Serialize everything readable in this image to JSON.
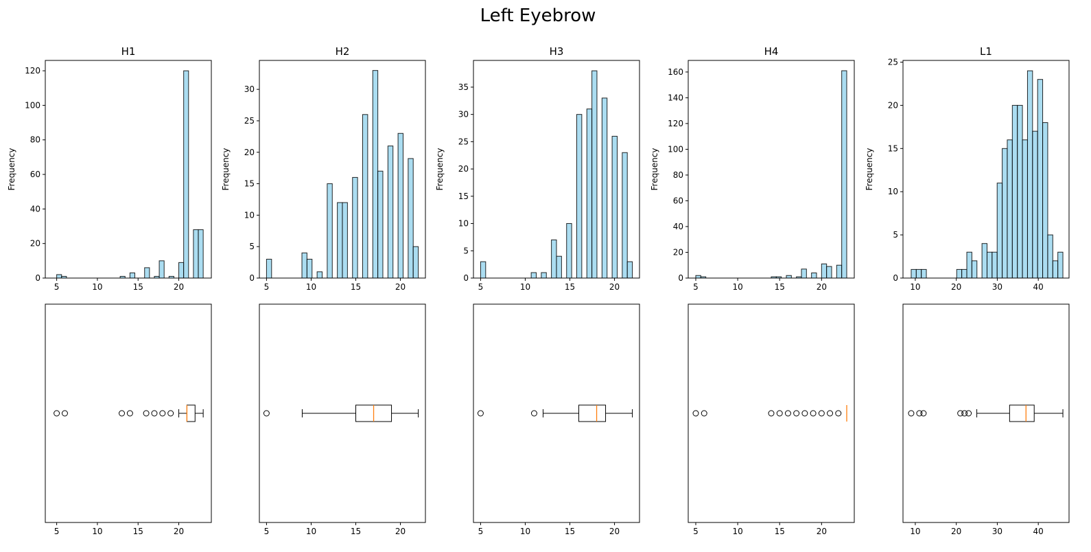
{
  "figure": {
    "title": "Left Eyebrow"
  },
  "colors": {
    "bar_fill": "#87ceeb",
    "bar_edge": "#000000",
    "median": "#ff7f0e",
    "box": "#000000"
  },
  "chart_data": [
    {
      "type": "bar",
      "panel": "histogram",
      "title": "H1",
      "xlabel": "",
      "ylabel": "Frequency",
      "xlim": [
        3.6,
        24.0
      ],
      "ylim": [
        0,
        126
      ],
      "xticks": [
        5,
        10,
        15,
        20
      ],
      "yticks": [
        0,
        20,
        40,
        60,
        80,
        100,
        120
      ],
      "bin_edges": [
        5.0,
        5.6,
        6.2,
        6.8,
        7.4,
        8.0,
        8.6,
        9.2,
        9.8,
        10.4,
        11.0,
        11.6,
        12.2,
        12.8,
        13.4,
        14.0,
        14.6,
        15.2,
        15.8,
        16.4,
        17.0,
        17.6,
        18.2,
        18.8,
        19.4,
        20.0,
        20.6,
        21.2,
        21.8,
        22.4,
        23.0
      ],
      "values": [
        2,
        1,
        0,
        0,
        0,
        0,
        0,
        0,
        0,
        0,
        0,
        0,
        0,
        1,
        0,
        3,
        0,
        0,
        6,
        0,
        1,
        10,
        0,
        1,
        0,
        9,
        120,
        0,
        28,
        28
      ],
      "grid": false
    },
    {
      "type": "bar",
      "panel": "histogram",
      "title": "H2",
      "xlabel": "",
      "ylabel": "Frequency",
      "xlim": [
        4.2,
        22.8
      ],
      "ylim": [
        0,
        34.6
      ],
      "xticks": [
        5,
        10,
        15,
        20
      ],
      "yticks": [
        0,
        5,
        10,
        15,
        20,
        25,
        30
      ],
      "bin_edges": [
        5.0,
        5.567,
        6.133,
        6.7,
        7.267,
        7.833,
        8.4,
        8.967,
        9.533,
        10.1,
        10.667,
        11.233,
        11.8,
        12.367,
        12.933,
        13.5,
        14.067,
        14.633,
        15.2,
        15.767,
        16.333,
        16.9,
        17.467,
        18.033,
        18.6,
        19.167,
        19.733,
        20.3,
        20.867,
        21.433,
        22.0
      ],
      "values": [
        3,
        0,
        0,
        0,
        0,
        0,
        0,
        4,
        3,
        0,
        1,
        0,
        15,
        0,
        12,
        12,
        0,
        16,
        0,
        26,
        0,
        33,
        17,
        0,
        21,
        0,
        23,
        0,
        19,
        5
      ],
      "grid": false
    },
    {
      "type": "bar",
      "panel": "histogram",
      "title": "H3",
      "xlabel": "",
      "ylabel": "Frequency",
      "xlim": [
        4.2,
        22.8
      ],
      "ylim": [
        0,
        39.9
      ],
      "xticks": [
        5,
        10,
        15,
        20
      ],
      "yticks": [
        0,
        5,
        10,
        15,
        20,
        25,
        30,
        35
      ],
      "bin_edges": [
        5.0,
        5.567,
        6.133,
        6.7,
        7.267,
        7.833,
        8.4,
        8.967,
        9.533,
        10.1,
        10.667,
        11.233,
        11.8,
        12.367,
        12.933,
        13.5,
        14.067,
        14.633,
        15.2,
        15.767,
        16.333,
        16.9,
        17.467,
        18.033,
        18.6,
        19.167,
        19.733,
        20.3,
        20.867,
        21.433,
        22.0
      ],
      "values": [
        3,
        0,
        0,
        0,
        0,
        0,
        0,
        0,
        0,
        0,
        1,
        0,
        1,
        0,
        7,
        4,
        0,
        10,
        0,
        30,
        0,
        31,
        38,
        0,
        33,
        0,
        26,
        0,
        23,
        3
      ],
      "grid": false
    },
    {
      "type": "bar",
      "panel": "histogram",
      "title": "H4",
      "xlabel": "",
      "ylabel": "Frequency",
      "xlim": [
        4.1,
        23.9
      ],
      "ylim": [
        0,
        169
      ],
      "xticks": [
        5,
        10,
        15,
        20
      ],
      "yticks": [
        0,
        20,
        40,
        60,
        80,
        100,
        120,
        140,
        160
      ],
      "bin_edges": [
        5.0,
        5.6,
        6.2,
        6.8,
        7.4,
        8.0,
        8.6,
        9.2,
        9.8,
        10.4,
        11.0,
        11.6,
        12.2,
        12.8,
        13.4,
        14.0,
        14.6,
        15.2,
        15.8,
        16.4,
        17.0,
        17.6,
        18.2,
        18.8,
        19.4,
        20.0,
        20.6,
        21.2,
        21.8,
        22.4,
        23.0
      ],
      "values": [
        2,
        1,
        0,
        0,
        0,
        0,
        0,
        0,
        0,
        0,
        0,
        0,
        0,
        0,
        0,
        1,
        1,
        0,
        2,
        0,
        1,
        7,
        0,
        4,
        0,
        11,
        9,
        0,
        10,
        161
      ],
      "grid": false
    },
    {
      "type": "bar",
      "panel": "histogram",
      "title": "L1",
      "xlabel": "",
      "ylabel": "Frequency",
      "xlim": [
        7.0,
        47.5
      ],
      "ylim": [
        0,
        25.2
      ],
      "xticks": [
        10,
        20,
        30,
        40
      ],
      "yticks": [
        0,
        5,
        10,
        15,
        20,
        25
      ],
      "bin_edges": [
        9.0,
        10.233,
        11.467,
        12.7,
        13.933,
        15.167,
        16.4,
        17.633,
        18.867,
        20.1,
        21.333,
        22.567,
        23.8,
        25.033,
        26.267,
        27.5,
        28.733,
        29.967,
        31.2,
        32.433,
        33.667,
        34.9,
        36.133,
        37.367,
        38.6,
        39.833,
        41.067,
        42.3,
        43.533,
        44.767,
        46.0
      ],
      "values": [
        1,
        1,
        1,
        0,
        0,
        0,
        0,
        0,
        0,
        1,
        1,
        3,
        2,
        0,
        4,
        3,
        3,
        11,
        15,
        16,
        20,
        20,
        16,
        24,
        17,
        23,
        18,
        5,
        2,
        3
      ],
      "grid": false
    },
    {
      "type": "boxplot",
      "panel": "boxplot",
      "series_of": "H1",
      "orientation": "horizontal",
      "xlim": [
        3.6,
        24.0
      ],
      "xticks": [
        5,
        10,
        15,
        20
      ],
      "whisker_low": 20,
      "q1": 21,
      "median": 21,
      "q3": 22,
      "whisker_high": 23,
      "outliers": [
        5,
        6,
        13,
        14,
        16,
        17,
        18,
        19
      ]
    },
    {
      "type": "boxplot",
      "panel": "boxplot",
      "series_of": "H2",
      "orientation": "horizontal",
      "xlim": [
        4.2,
        22.8
      ],
      "xticks": [
        5,
        10,
        15,
        20
      ],
      "whisker_low": 9,
      "q1": 15,
      "median": 17,
      "q3": 19,
      "whisker_high": 22,
      "outliers": [
        5
      ]
    },
    {
      "type": "boxplot",
      "panel": "boxplot",
      "series_of": "H3",
      "orientation": "horizontal",
      "xlim": [
        4.2,
        22.8
      ],
      "xticks": [
        5,
        10,
        15,
        20
      ],
      "whisker_low": 12,
      "q1": 16,
      "median": 18,
      "q3": 19,
      "whisker_high": 22,
      "outliers": [
        5,
        11
      ]
    },
    {
      "type": "boxplot",
      "panel": "boxplot",
      "series_of": "H4",
      "orientation": "horizontal",
      "xlim": [
        4.1,
        23.9
      ],
      "xticks": [
        5,
        10,
        15,
        20
      ],
      "whisker_low": 23,
      "q1": 23,
      "median": 23,
      "q3": 23,
      "whisker_high": 23,
      "outliers": [
        5,
        6,
        14,
        15,
        16,
        17,
        18,
        19,
        20,
        21,
        22
      ]
    },
    {
      "type": "boxplot",
      "panel": "boxplot",
      "series_of": "L1",
      "orientation": "horizontal",
      "xlim": [
        7.0,
        47.5
      ],
      "xticks": [
        10,
        20,
        30,
        40
      ],
      "whisker_low": 25,
      "q1": 33,
      "median": 37,
      "q3": 39,
      "whisker_high": 46,
      "outliers": [
        9,
        11,
        12,
        21,
        22,
        23
      ]
    }
  ]
}
